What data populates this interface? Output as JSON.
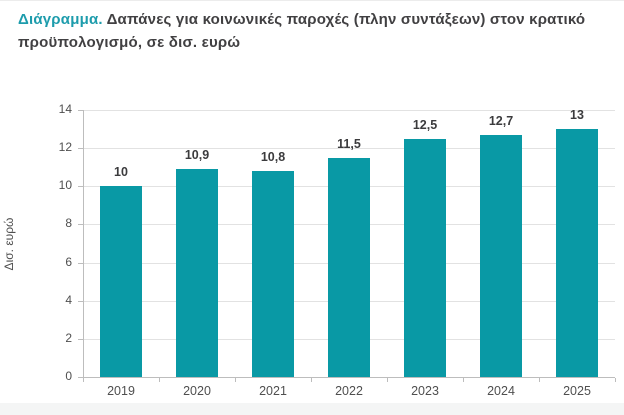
{
  "header": {
    "label": "Διάγραμμα.",
    "title_line1": "Δαπάνες για κοινωνικές παροχές (πλην συντάξεων) στον κρατικό",
    "title_line2": "προϋπολογισμό, σε δισ. ευρώ"
  },
  "chart_data": {
    "type": "bar",
    "categories": [
      "2019",
      "2020",
      "2021",
      "2022",
      "2023",
      "2024",
      "2025"
    ],
    "values": [
      10,
      10.9,
      10.8,
      11.5,
      12.5,
      12.7,
      13
    ],
    "value_labels": [
      "10",
      "10,9",
      "10,8",
      "11,5",
      "12,5",
      "12,7",
      "13"
    ],
    "title": "Δαπάνες για κοινωνικές παροχές (πλην συντάξεων) στον κρατικό προϋπολογισμό, σε δισ. ευρώ",
    "xlabel": "",
    "ylabel": "Δισ. ευρώ",
    "ylim": [
      0,
      14
    ],
    "yticks": [
      0,
      2,
      4,
      6,
      8,
      10,
      12,
      14
    ],
    "grid": true,
    "legend": "none",
    "bar_color": "#0999a5"
  },
  "colors": {
    "accent": "#1d9cac",
    "bar": "#0999a5",
    "title_text": "#414042",
    "tick_text": "#4f4f4f",
    "grid": "#e2e2e2",
    "axis": "#bdbdbd"
  }
}
